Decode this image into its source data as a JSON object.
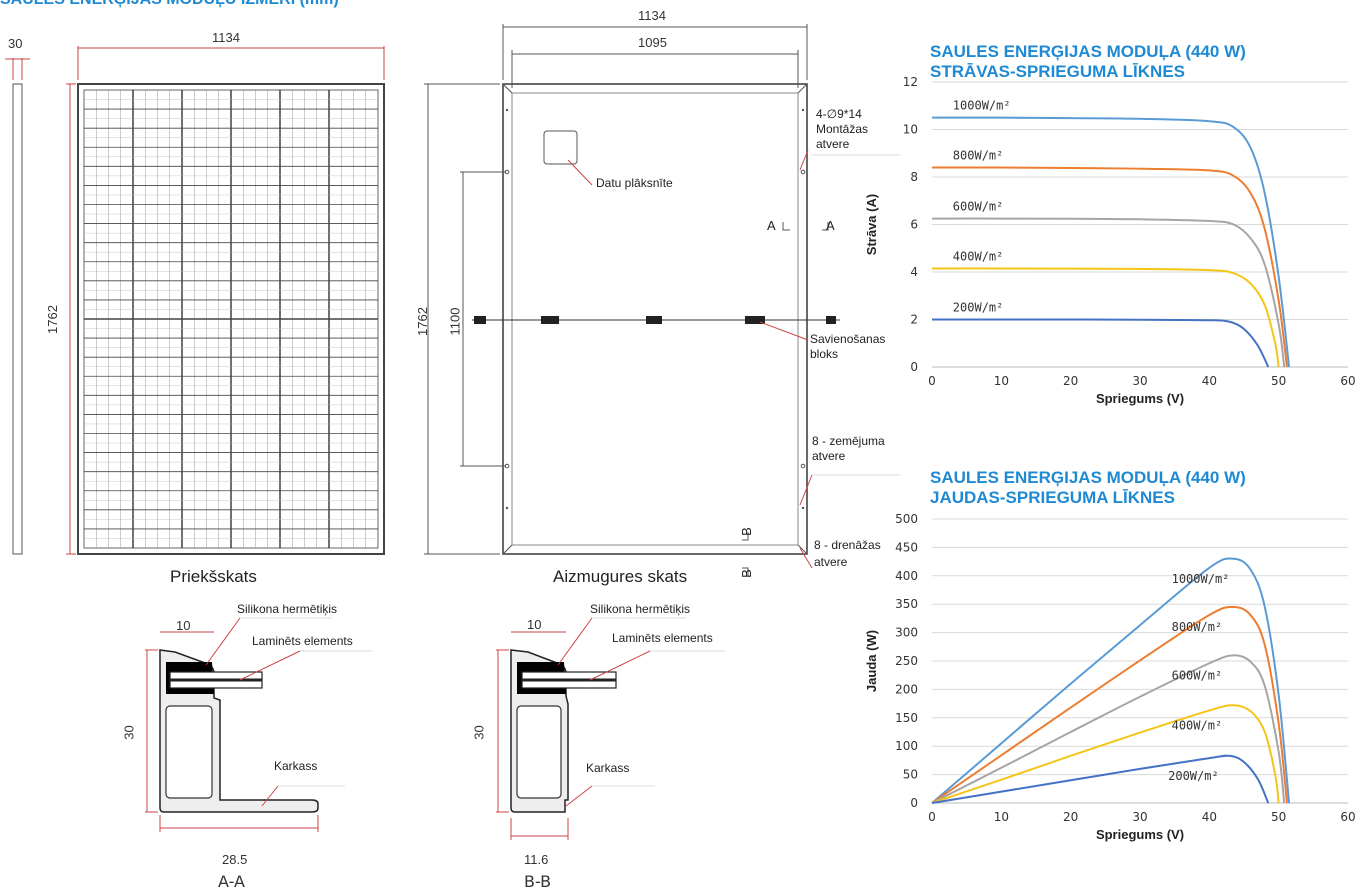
{
  "dimensions_title": "SAULES ENERĢIJAS MODUĻU IZMĒRI (mm)",
  "front": {
    "thickness": "30",
    "width": "1134",
    "height": "1762",
    "caption": "Priekšskats"
  },
  "back": {
    "outer_width": "1134",
    "inner_width": "1095",
    "height": "1762",
    "mount_spacing": "1100",
    "caption": "Aizmugures skats",
    "mount_holes": "4-∅9*14",
    "mount_holes_2": "Montāžas",
    "mount_holes_3": "atvere",
    "nameplate": "Datu plāksnīte",
    "junction": "Savienošanas",
    "junction_2": "bloks",
    "ground": "8 - zemējuma",
    "ground_2": "atvere",
    "drain": "8 - drenāžas",
    "drain_2": "atvere",
    "sec_a_left": "A",
    "sec_a_right": "A",
    "sec_b_top": "B",
    "sec_b_bottom": "B"
  },
  "section_aa": {
    "sealant": "Silikona hermētiķis",
    "laminate": "Laminēts elements",
    "frame": "Karkass",
    "top_dim": "10",
    "height_dim": "30",
    "width_dim": "28.5",
    "name": "A-A"
  },
  "section_bb": {
    "sealant": "Silikona hermētiķis",
    "laminate": "Laminēts elements",
    "frame": "Karkass",
    "top_dim": "10",
    "height_dim": "30",
    "width_dim": "11.6",
    "name": "B-B"
  },
  "iv_chart": {
    "title_line1": "SAULES ENERĢIJAS MODUĻA (440 W)",
    "title_line2": "STRĀVAS-SPRIEGUMA LĪKNES"
  },
  "pv_chart": {
    "title_line1": "SAULES ENERĢIJAS MODUĻA (440 W)",
    "title_line2": "JAUDAS-SPRIEGUMA LĪKNES"
  },
  "chart_data": [
    {
      "type": "line",
      "xlabel": "Spriegums (V)",
      "ylabel": "Strāva (A)",
      "xlim": [
        0,
        60
      ],
      "ylim": [
        0,
        12
      ],
      "xticks": [
        0,
        10,
        20,
        30,
        40,
        50,
        60
      ],
      "yticks": [
        0,
        2,
        4,
        6,
        8,
        10,
        12
      ],
      "grid": true,
      "series": [
        {
          "name": "1000W/m²",
          "color": "#5b9bd5",
          "isc": 10.5,
          "voc": 51.5,
          "vmp": 43.5,
          "x": [
            0,
            10,
            20,
            30,
            40,
            43.5,
            46,
            48,
            50,
            51.5
          ],
          "y": [
            10.5,
            10.5,
            10.48,
            10.45,
            10.35,
            10.1,
            9.2,
            7.3,
            3.8,
            0
          ]
        },
        {
          "name": "800W/m²",
          "color": "#ed7d31",
          "isc": 8.4,
          "voc": 51.2,
          "vmp": 43.5,
          "x": [
            0,
            10,
            20,
            30,
            40,
            43.5,
            46,
            48,
            50,
            51.2
          ],
          "y": [
            8.4,
            8.4,
            8.38,
            8.35,
            8.28,
            8.05,
            7.3,
            5.8,
            2.8,
            0
          ]
        },
        {
          "name": "600W/m²",
          "color": "#a5a5a5",
          "isc": 6.25,
          "voc": 50.8,
          "vmp": 43.5,
          "x": [
            0,
            10,
            20,
            30,
            40,
            43.5,
            46,
            48,
            50,
            50.8
          ],
          "y": [
            6.25,
            6.25,
            6.24,
            6.22,
            6.15,
            6.0,
            5.4,
            4.3,
            1.8,
            0
          ]
        },
        {
          "name": "400W/m²",
          "color": "#f5c518",
          "isc": 4.15,
          "voc": 50.0,
          "vmp": 43.5,
          "x": [
            0,
            10,
            20,
            30,
            40,
            43.5,
            46,
            48,
            49.5,
            50.0
          ],
          "y": [
            4.15,
            4.15,
            4.14,
            4.13,
            4.08,
            3.95,
            3.5,
            2.6,
            1.0,
            0
          ]
        },
        {
          "name": "200W/m²",
          "color": "#4472c4",
          "isc": 2.0,
          "voc": 48.5,
          "vmp": 43.0,
          "x": [
            0,
            10,
            20,
            30,
            40,
            43,
            45,
            47,
            48.5
          ],
          "y": [
            2.0,
            2.0,
            2.0,
            1.99,
            1.97,
            1.9,
            1.6,
            0.9,
            0
          ]
        }
      ]
    },
    {
      "type": "line",
      "xlabel": "Spriegums (V)",
      "ylabel": "Jauda (W)",
      "xlim": [
        0,
        60
      ],
      "ylim": [
        0,
        500
      ],
      "xticks": [
        0,
        10,
        20,
        30,
        40,
        50,
        60
      ],
      "yticks": [
        0,
        50,
        100,
        150,
        200,
        250,
        300,
        350,
        400,
        450,
        500
      ],
      "grid": true,
      "series": [
        {
          "name": "1000W/m²",
          "color": "#5b9bd5",
          "x": [
            0,
            10,
            20,
            30,
            40,
            43.5,
            46,
            48,
            50,
            51.5
          ],
          "y": [
            0,
            105,
            210,
            313,
            414,
            430,
            410,
            345,
            190,
            0
          ]
        },
        {
          "name": "800W/m²",
          "color": "#ed7d31",
          "x": [
            0,
            10,
            20,
            30,
            40,
            43.5,
            46,
            48,
            50,
            51.2
          ],
          "y": [
            0,
            84,
            168,
            251,
            331,
            345,
            330,
            278,
            140,
            0
          ]
        },
        {
          "name": "600W/m²",
          "color": "#a5a5a5",
          "x": [
            0,
            10,
            20,
            30,
            40,
            43.5,
            46,
            48,
            50,
            50.8
          ],
          "y": [
            0,
            62,
            125,
            187,
            246,
            260,
            248,
            206,
            90,
            0
          ]
        },
        {
          "name": "400W/m²",
          "color": "#f5c518",
          "x": [
            0,
            10,
            20,
            30,
            40,
            43.5,
            46,
            48,
            49.5,
            50.0
          ],
          "y": [
            0,
            41,
            83,
            124,
            163,
            172,
            161,
            125,
            50,
            0
          ]
        },
        {
          "name": "200W/m²",
          "color": "#4472c4",
          "x": [
            0,
            10,
            20,
            30,
            40,
            43,
            45,
            47,
            48.5
          ],
          "y": [
            0,
            20,
            40,
            60,
            79,
            83,
            72,
            42,
            0
          ]
        }
      ]
    }
  ]
}
